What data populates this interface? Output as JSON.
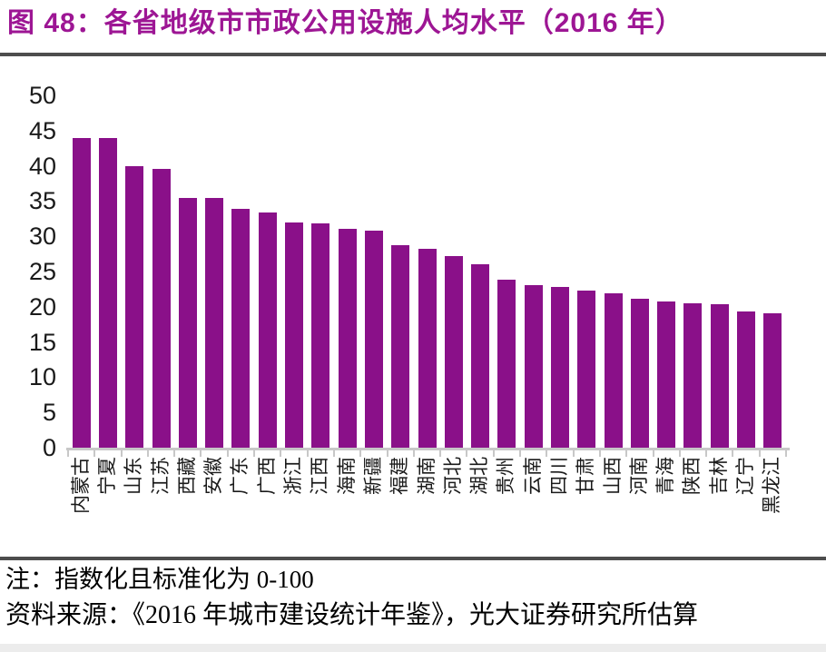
{
  "figure": {
    "title": "图 48：各省地级市市政公用设施人均水平（2016 年）",
    "note": "注：指数化且标准化为 0-100",
    "source": "资料来源：《2016 年城市建设统计年鉴》，光大证券研究所估算"
  },
  "colors": {
    "title": "#9D1694",
    "bar": "#8A1089",
    "divider": "#4D4D4D",
    "axis_line": "#C8C8C8",
    "axis_text": "#1A1A1A"
  },
  "chart_data": {
    "type": "bar",
    "title": "各省地级市市政公用设施人均水平（2016 年）",
    "categories": [
      "内蒙古",
      "宁夏",
      "山东",
      "江苏",
      "西藏",
      "安徽",
      "广东",
      "广西",
      "浙江",
      "江西",
      "海南",
      "新疆",
      "福建",
      "湖南",
      "河北",
      "湖北",
      "贵州",
      "云南",
      "四川",
      "甘肃",
      "山西",
      "河南",
      "青海",
      "陕西",
      "吉林",
      "辽宁",
      "黑龙江"
    ],
    "values": [
      44.0,
      43.9,
      40.0,
      39.5,
      35.5,
      35.4,
      33.9,
      33.4,
      32.0,
      31.8,
      31.0,
      30.8,
      28.7,
      28.2,
      27.2,
      26.0,
      23.8,
      23.1,
      22.8,
      22.3,
      21.9,
      21.1,
      20.7,
      20.5,
      20.4,
      19.3,
      19.1
    ],
    "xlabel": "",
    "ylabel": "",
    "ylim": [
      0,
      50
    ],
    "yticks": [
      0,
      5,
      10,
      15,
      20,
      25,
      30,
      35,
      40,
      45,
      50
    ],
    "grid": false,
    "legend": "none",
    "x_tick_label_rotation_deg": 90,
    "unit_note": "指数化且标准化为 0-100"
  }
}
